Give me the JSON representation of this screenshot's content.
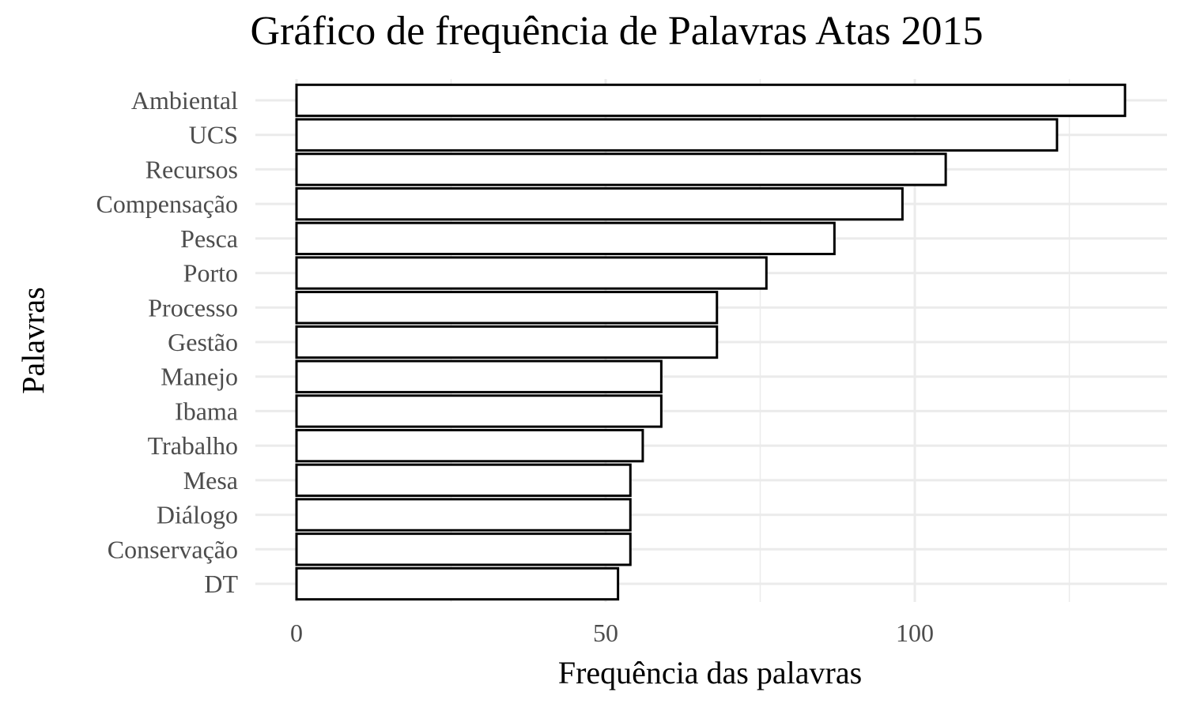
{
  "chart_data": {
    "type": "bar",
    "orientation": "horizontal",
    "title": "Gráfico de frequência de Palavras Atas 2015",
    "xlabel": "Frequência das palavras",
    "ylabel": "Palavras",
    "categories": [
      "Ambiental",
      "UCS",
      "Recursos",
      "Compensação",
      "Pesca",
      "Porto",
      "Processo",
      "Gestão",
      "Manejo",
      "Ibama",
      "Trabalho",
      "Mesa",
      "Diálogo",
      "Conservação",
      "DT"
    ],
    "values": [
      134,
      123,
      105,
      98,
      87,
      76,
      68,
      68,
      59,
      59,
      56,
      54,
      54,
      54,
      52
    ],
    "xlim": [
      0,
      140
    ],
    "xticks": [
      0,
      50,
      100
    ],
    "grid": true,
    "colors": {
      "bar_fill": "#ffffff",
      "bar_stroke": "#000000",
      "grid": "#ebebeb"
    }
  }
}
